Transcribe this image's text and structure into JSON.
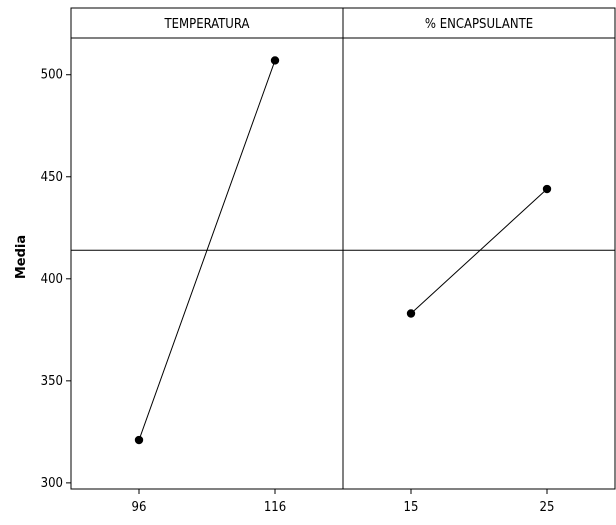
{
  "chart_data": {
    "type": "line",
    "ylabel": "Media",
    "ylim": [
      297,
      518
    ],
    "yticks": [
      300,
      350,
      400,
      450,
      500
    ],
    "grand_mean": 414,
    "panels": [
      {
        "title": "TEMPERATURA",
        "categories": [
          "96",
          "116"
        ],
        "values": [
          321,
          507
        ]
      },
      {
        "title": "% ENCAPSULANTE",
        "categories": [
          "15",
          "25"
        ],
        "values": [
          383,
          444
        ]
      }
    ],
    "colors": {
      "line": "#000000",
      "point": "#000000",
      "frame": "#000000"
    },
    "grid": false
  }
}
